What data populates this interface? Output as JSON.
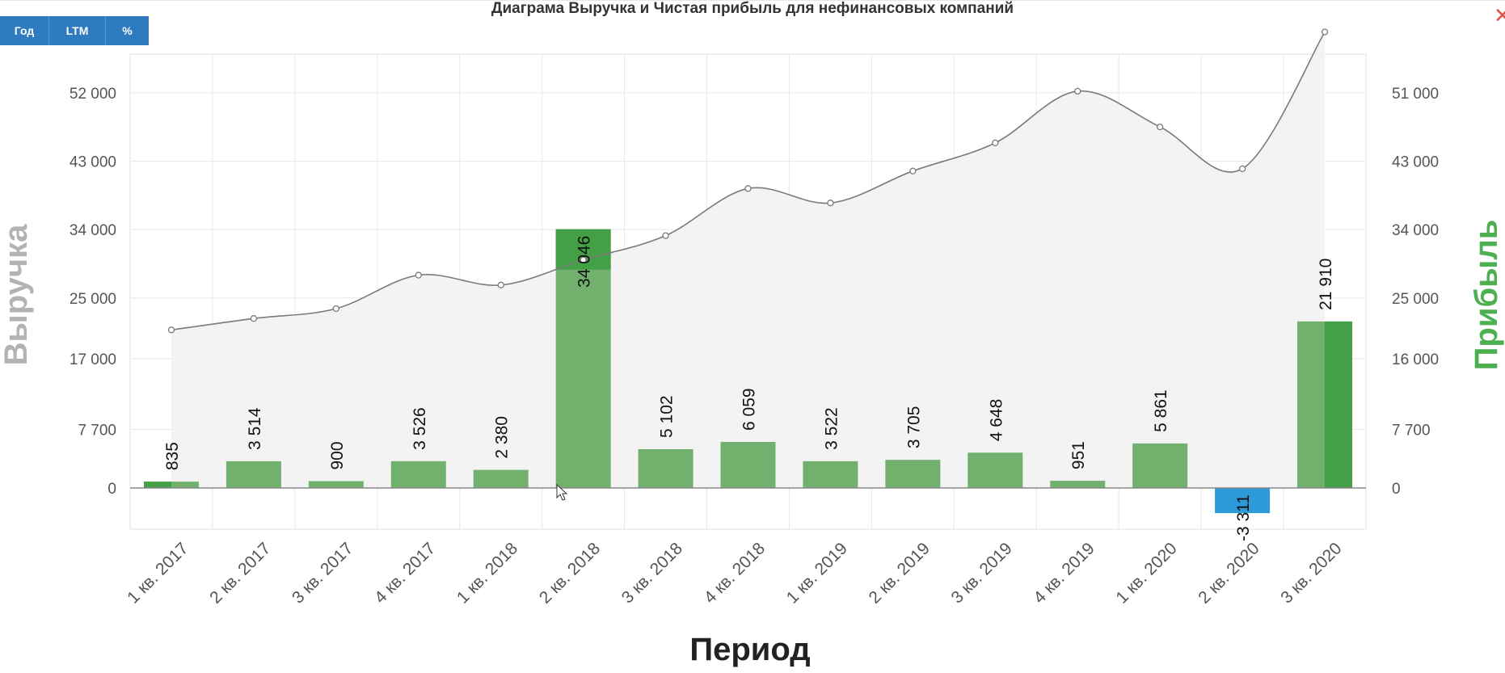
{
  "toolbar": {
    "btn_year": "Год",
    "btn_ltm": "LTM",
    "btn_percent": "%"
  },
  "close_icon": "close-icon",
  "colors": {
    "profit_positive": "#72b06e",
    "profit_highlight": "#43a046",
    "profit_negative": "#2d9bd9",
    "revenue_line": "#7a7a7a",
    "revenue_area": "#f3f3f3"
  },
  "chart_data": {
    "type": "bar",
    "title": "Диаграма Выручка и Чистая прибыль для нефинансовых компаний",
    "xlabel": "Период",
    "ylabel_left": "Выручка",
    "ylabel_right": "Прибыль",
    "grid": true,
    "categories": [
      "1 кв. 2017",
      "2 кв. 2017",
      "3 кв. 2017",
      "4 кв. 2017",
      "1 кв. 2018",
      "2 кв. 2018",
      "3 кв. 2018",
      "4 кв. 2018",
      "1 кв. 2019",
      "2 кв. 2019",
      "3 кв. 2019",
      "4 кв. 2019",
      "1 кв. 2020",
      "2 кв. 2020",
      "3 кв. 2020"
    ],
    "left_axis": {
      "ticks": [
        "0",
        "7 700",
        "17 000",
        "25 000",
        "34 000",
        "43 000",
        "52 000"
      ],
      "ylim": [
        -5500,
        57000
      ]
    },
    "right_axis": {
      "ticks": [
        "0",
        "7 700",
        "16 000",
        "25 000",
        "34 000",
        "43 000",
        "51 000"
      ]
    },
    "series": [
      {
        "type": "area-line",
        "axis": "left",
        "values": [
          20800,
          22300,
          23600,
          28000,
          26700,
          30000,
          33200,
          39400,
          37500,
          41700,
          45400,
          52200,
          47500,
          42000,
          60000
        ]
      },
      {
        "type": "bar",
        "axis": "right",
        "name": "Прибыль",
        "values": [
          835,
          3514,
          900,
          3526,
          2380,
          34046,
          5102,
          6059,
          3522,
          3705,
          4648,
          951,
          5861,
          -3311,
          21910
        ],
        "labels": [
          "835",
          "3 514",
          "900",
          "3 526",
          "2 380",
          "34 046",
          "5 102",
          "6 059",
          "3 522",
          "3 705",
          "4 648",
          "951",
          "5 861",
          "-3 311",
          "21 910"
        ]
      }
    ]
  }
}
